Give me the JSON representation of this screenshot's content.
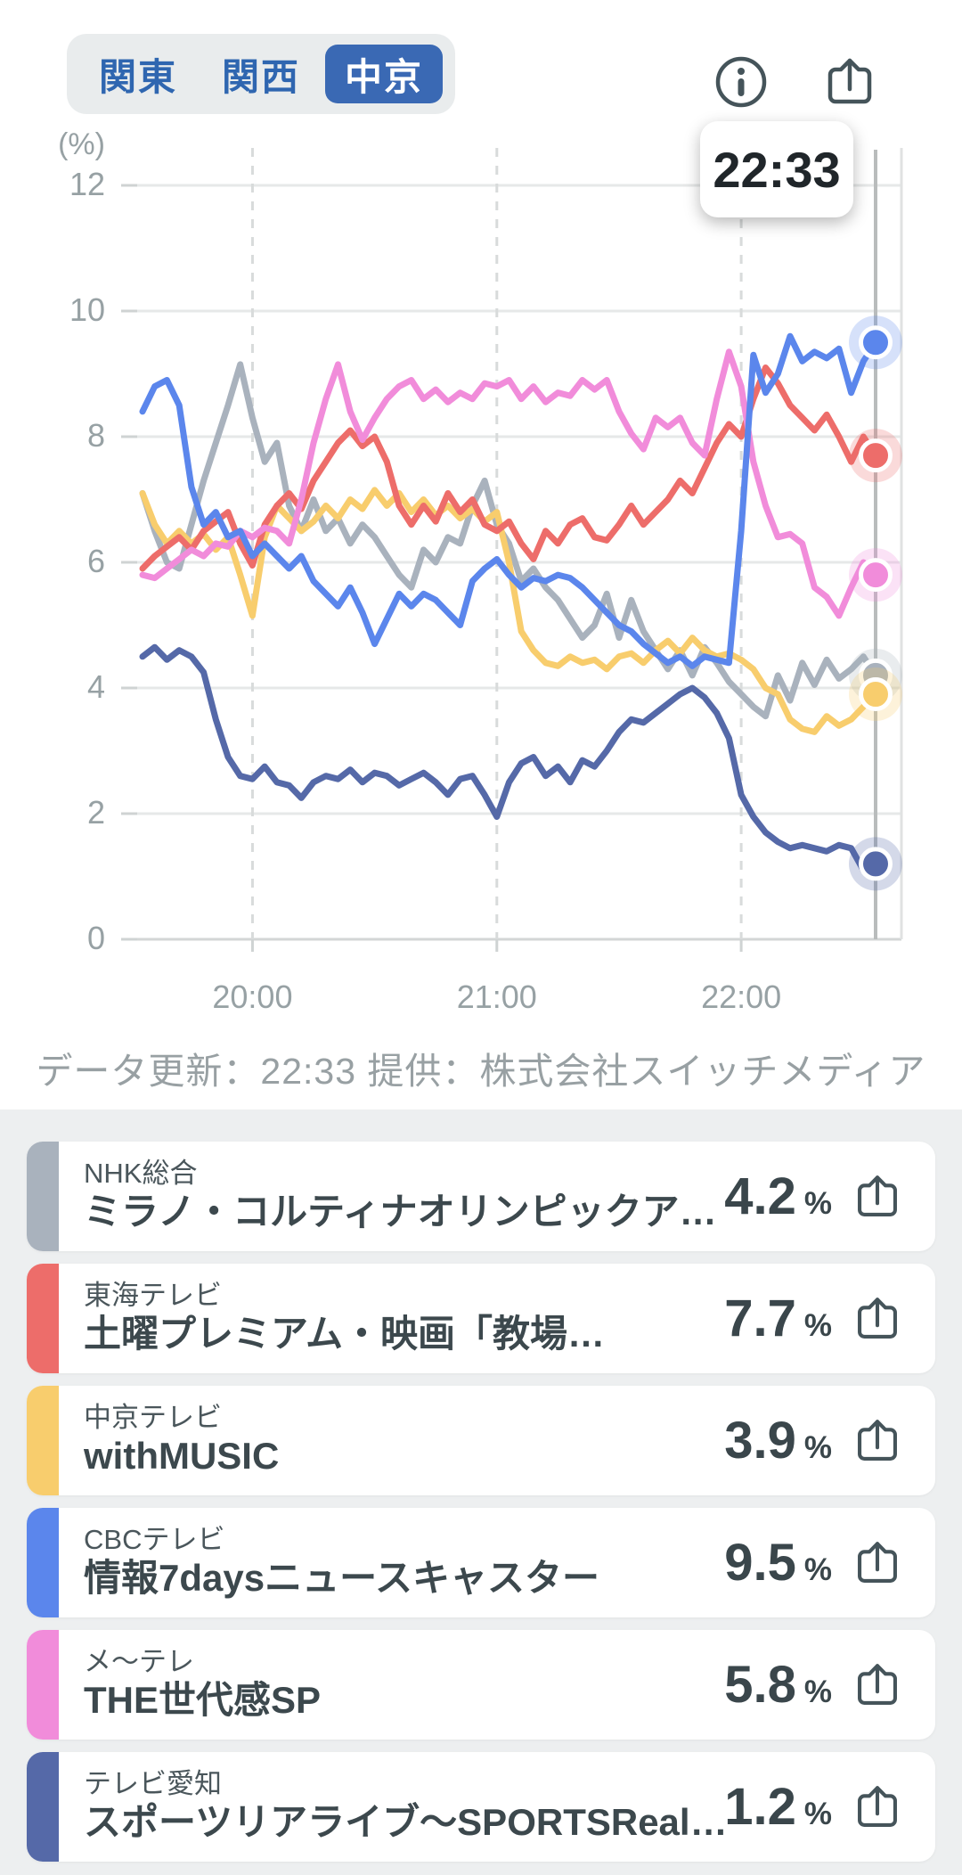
{
  "tabs": {
    "items": [
      {
        "label": "関東",
        "selected": false
      },
      {
        "label": "関西",
        "selected": false
      },
      {
        "label": "中京",
        "selected": true
      }
    ],
    "selected_bg": "#3a69b4",
    "text_color": "#2f66b0"
  },
  "icons": {
    "info": "info-circle",
    "share": "share-box-arrow-up",
    "color": "#45545a"
  },
  "tooltip": {
    "time": "22:33"
  },
  "chart_data": {
    "type": "line",
    "unit_label": "(%)",
    "ylim": [
      0,
      12
    ],
    "yticks": [
      0,
      2,
      4,
      6,
      8,
      10,
      12
    ],
    "x_start": "19:33",
    "x_end": "22:33",
    "step_minutes": 3,
    "xticks": [
      {
        "label": "20:00",
        "t": 27
      },
      {
        "label": "21:00",
        "t": 87
      },
      {
        "label": "22:00",
        "t": 147
      }
    ],
    "cursor": {
      "t": 180,
      "label": "22:33"
    },
    "grid": true,
    "legend_position": "none",
    "draw_order": [
      0,
      2,
      1,
      5,
      4,
      3
    ],
    "series": [
      {
        "name": "NHK総合",
        "color": "#a9b2bd",
        "values": [
          7.1,
          6.5,
          6.0,
          5.9,
          6.6,
          7.3,
          7.9,
          8.5,
          9.15,
          8.3,
          7.6,
          7.9,
          6.9,
          6.5,
          7.0,
          6.5,
          6.7,
          6.3,
          6.6,
          6.4,
          6.1,
          5.8,
          5.6,
          6.2,
          6.0,
          6.4,
          6.3,
          6.9,
          7.3,
          6.6,
          6.3,
          5.7,
          5.9,
          5.6,
          5.4,
          5.1,
          4.8,
          5.0,
          5.5,
          4.8,
          5.4,
          4.9,
          4.6,
          4.3,
          4.6,
          4.2,
          4.65,
          4.4,
          4.1,
          3.9,
          3.7,
          3.55,
          4.2,
          3.8,
          4.4,
          4.05,
          4.45,
          4.15,
          4.3,
          4.5,
          4.2
        ]
      },
      {
        "name": "東海テレビ",
        "color": "#ed6d6a",
        "values": [
          5.9,
          6.1,
          6.25,
          6.4,
          6.2,
          6.5,
          6.65,
          6.8,
          6.3,
          5.95,
          6.6,
          6.9,
          7.1,
          6.85,
          7.3,
          7.6,
          7.9,
          8.1,
          7.85,
          8.0,
          7.6,
          6.9,
          6.6,
          6.9,
          6.65,
          7.1,
          6.8,
          7.0,
          6.6,
          6.5,
          6.65,
          6.3,
          6.05,
          6.5,
          6.3,
          6.6,
          6.7,
          6.4,
          6.35,
          6.6,
          6.9,
          6.6,
          6.8,
          7.0,
          7.3,
          7.1,
          7.5,
          7.9,
          8.2,
          8.0,
          8.6,
          9.1,
          8.85,
          8.5,
          8.3,
          8.1,
          8.35,
          8.0,
          7.6,
          8.0,
          7.7
        ]
      },
      {
        "name": "中京テレビ",
        "color": "#f8cd6d",
        "values": [
          7.1,
          6.6,
          6.3,
          6.5,
          6.3,
          6.45,
          6.2,
          6.4,
          5.8,
          5.15,
          6.4,
          6.9,
          6.7,
          6.5,
          6.65,
          6.9,
          6.7,
          7.0,
          6.85,
          7.15,
          6.9,
          7.1,
          6.8,
          7.0,
          6.75,
          6.9,
          6.7,
          6.85,
          6.65,
          6.8,
          6.0,
          4.9,
          4.6,
          4.4,
          4.35,
          4.5,
          4.4,
          4.45,
          4.3,
          4.5,
          4.55,
          4.4,
          4.6,
          4.75,
          4.55,
          4.8,
          4.6,
          4.5,
          4.55,
          4.45,
          4.3,
          4.0,
          3.9,
          3.5,
          3.35,
          3.3,
          3.55,
          3.4,
          3.5,
          3.7,
          3.9
        ]
      },
      {
        "name": "CBCテレビ",
        "color": "#5b86ec",
        "values": [
          8.4,
          8.8,
          8.9,
          8.5,
          7.2,
          6.6,
          6.8,
          6.4,
          6.5,
          6.1,
          6.3,
          6.1,
          5.9,
          6.1,
          5.7,
          5.5,
          5.3,
          5.6,
          5.2,
          4.7,
          5.1,
          5.5,
          5.3,
          5.5,
          5.4,
          5.2,
          5.0,
          5.7,
          5.9,
          6.05,
          5.8,
          5.6,
          5.75,
          5.7,
          5.8,
          5.75,
          5.6,
          5.4,
          5.2,
          5.0,
          4.9,
          4.7,
          4.55,
          4.4,
          4.5,
          4.35,
          4.5,
          4.45,
          4.4,
          6.5,
          9.3,
          8.7,
          9.0,
          9.6,
          9.2,
          9.35,
          9.25,
          9.4,
          8.7,
          9.2,
          9.5
        ]
      },
      {
        "name": "メ〜テレ",
        "color": "#f18cda",
        "values": [
          5.8,
          5.75,
          5.9,
          6.05,
          6.2,
          6.1,
          6.3,
          6.25,
          6.5,
          6.4,
          6.55,
          6.5,
          6.3,
          7.0,
          7.9,
          8.6,
          9.15,
          8.4,
          7.95,
          8.3,
          8.6,
          8.8,
          8.9,
          8.6,
          8.75,
          8.55,
          8.7,
          8.6,
          8.85,
          8.8,
          8.9,
          8.6,
          8.8,
          8.55,
          8.7,
          8.65,
          8.9,
          8.75,
          8.9,
          8.4,
          8.05,
          7.8,
          8.3,
          8.15,
          8.3,
          7.9,
          7.7,
          8.6,
          9.35,
          8.8,
          7.6,
          6.9,
          6.4,
          6.45,
          6.3,
          5.6,
          5.45,
          5.15,
          5.6,
          6.0,
          5.8
        ]
      },
      {
        "name": "テレビ愛知",
        "color": "#5569a8",
        "values": [
          4.5,
          4.65,
          4.45,
          4.6,
          4.5,
          4.25,
          3.5,
          2.9,
          2.6,
          2.55,
          2.75,
          2.5,
          2.45,
          2.25,
          2.5,
          2.6,
          2.55,
          2.7,
          2.5,
          2.65,
          2.6,
          2.45,
          2.55,
          2.65,
          2.5,
          2.3,
          2.55,
          2.6,
          2.3,
          1.95,
          2.5,
          2.8,
          2.9,
          2.6,
          2.75,
          2.5,
          2.85,
          2.75,
          3.0,
          3.3,
          3.5,
          3.45,
          3.6,
          3.75,
          3.9,
          4.0,
          3.85,
          3.6,
          3.2,
          2.3,
          1.95,
          1.7,
          1.55,
          1.45,
          1.5,
          1.45,
          1.4,
          1.5,
          1.45,
          1.1,
          1.2
        ]
      }
    ]
  },
  "footer": {
    "update_text": "データ更新：22:33 提供：株式会社スイッチメディア"
  },
  "channels": [
    {
      "name": "NHK総合",
      "program": "ミラノ・コルティナオリンピックア…",
      "rating": "4.2",
      "unit": "%",
      "color": "#a9b2bd"
    },
    {
      "name": "東海テレビ",
      "program": "土曜プレミアム・映画「教場…",
      "rating": "7.7",
      "unit": "%",
      "color": "#ed6d6a"
    },
    {
      "name": "中京テレビ",
      "program": "withMUSIC",
      "rating": "3.9",
      "unit": "%",
      "color": "#f8cd6d"
    },
    {
      "name": "CBCテレビ",
      "program": "情報7daysニュースキャスター",
      "rating": "9.5",
      "unit": "%",
      "color": "#5b86ec"
    },
    {
      "name": "メ〜テレ",
      "program": "THE世代感SP",
      "rating": "5.8",
      "unit": "%",
      "color": "#f18cda"
    },
    {
      "name": "テレビ愛知",
      "program": "スポーツリアライブ〜SPORTSReal…",
      "rating": "1.2",
      "unit": "%",
      "color": "#5569a8"
    }
  ]
}
